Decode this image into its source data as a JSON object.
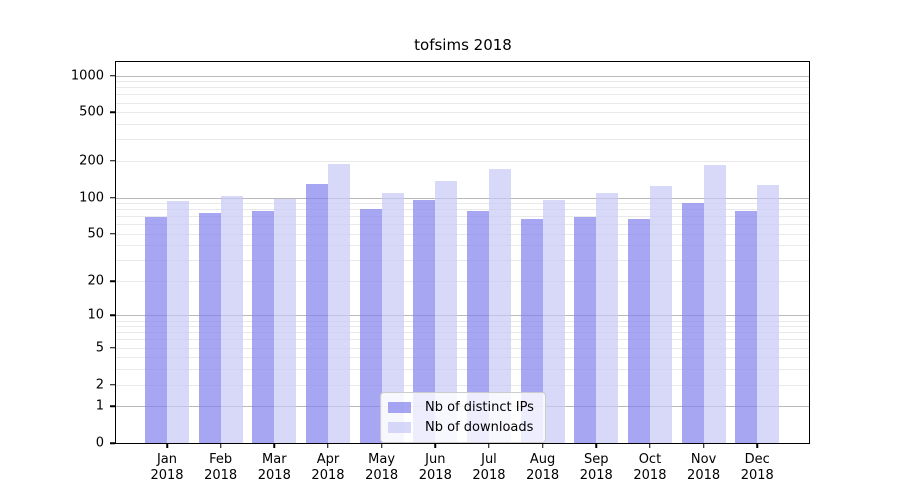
{
  "chart_data": {
    "type": "bar",
    "title": "tofsims 2018",
    "categories": [
      "Jan",
      "Feb",
      "Mar",
      "Apr",
      "May",
      "Jun",
      "Jul",
      "Aug",
      "Sep",
      "Oct",
      "Nov",
      "Dec"
    ],
    "x_sublabel": "2018",
    "series": [
      {
        "name": "Nb of distinct IPs",
        "color": "rgba(128,128,236,0.7)",
        "values": [
          69,
          74,
          78,
          130,
          80,
          95,
          78,
          67,
          69,
          66,
          90,
          78
        ]
      },
      {
        "name": "Nb of downloads",
        "color": "rgba(200,200,245,0.7)",
        "values": [
          94,
          103,
          97,
          190,
          110,
          136,
          173,
          96,
          110,
          124,
          186,
          128
        ]
      }
    ],
    "y_ticks": [
      0,
      1,
      2,
      5,
      10,
      20,
      50,
      100,
      200,
      500,
      1000
    ],
    "y_scale": "log1p",
    "ylim": [
      0,
      1290
    ],
    "grid": {
      "major_at": [
        1,
        10,
        100,
        1000
      ],
      "major_color": "#b8b8b8",
      "minor_color": "#e9e9e9"
    },
    "legend_position": "lower center",
    "xlabel": "",
    "ylabel": ""
  }
}
